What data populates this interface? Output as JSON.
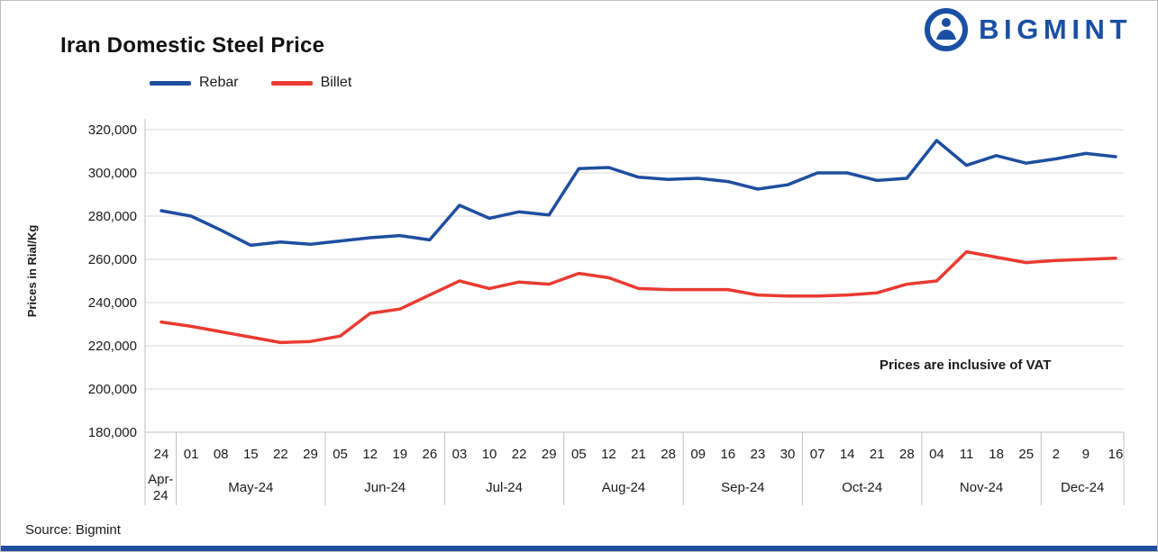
{
  "header": {
    "title": "Iran Domestic Steel Price",
    "brand": "BIGMINT"
  },
  "legend": {
    "items": [
      {
        "label": "Rebar"
      },
      {
        "label": "Billet"
      }
    ]
  },
  "annotation": "Prices are inclusive of VAT",
  "source": "Source: Bigmint",
  "colors": {
    "rebar_blue": "#1f4e9f",
    "billet_red": "#e93b33",
    "brand_blue": "#1b4fa3",
    "footer_bar": "#1f4e9f",
    "gridline": "#d9d9d9",
    "axis_line": "#bfbfbf"
  },
  "chart_data": {
    "type": "line",
    "title": "Iran Domestic Steel Price",
    "xlabel": "",
    "ylabel": "Prices in Rial/Kg",
    "ylim": [
      180000,
      320000
    ],
    "ytick_step": 20000,
    "ytick_labels": [
      "180,000",
      "200,000",
      "220,000",
      "240,000",
      "260,000",
      "280,000",
      "300,000",
      "320,000"
    ],
    "grid": true,
    "legend_position": "top-left",
    "note": "Prices are inclusive of VAT",
    "groups": [
      {
        "label": "Apr-24",
        "ticks": [
          "24"
        ]
      },
      {
        "label": "May-24",
        "ticks": [
          "01",
          "08",
          "15",
          "22",
          "29"
        ]
      },
      {
        "label": "Jun-24",
        "ticks": [
          "05",
          "12",
          "19",
          "26"
        ]
      },
      {
        "label": "Jul-24",
        "ticks": [
          "03",
          "10",
          "22",
          "29"
        ]
      },
      {
        "label": "Aug-24",
        "ticks": [
          "05",
          "12",
          "21",
          "28"
        ]
      },
      {
        "label": "Sep-24",
        "ticks": [
          "09",
          "16",
          "23",
          "30"
        ]
      },
      {
        "label": "Oct-24",
        "ticks": [
          "07",
          "14",
          "21",
          "28"
        ]
      },
      {
        "label": "Nov-24",
        "ticks": [
          "04",
          "11",
          "18",
          "25"
        ]
      },
      {
        "label": "Dec-24",
        "ticks": [
          "2",
          "9",
          "16"
        ]
      }
    ],
    "series": [
      {
        "name": "Rebar",
        "color": "#1f4e9f",
        "values": [
          282500,
          280000,
          273500,
          266500,
          268000,
          267000,
          268500,
          270000,
          271000,
          269000,
          285000,
          279000,
          282000,
          280500,
          302000,
          302500,
          298000,
          297000,
          297500,
          296000,
          292500,
          294500,
          300000,
          300000,
          296500,
          297500,
          315000,
          303500,
          308000,
          304500,
          306500,
          309000,
          307500
        ]
      },
      {
        "name": "Billet",
        "color": "#e93b33",
        "values": [
          231000,
          229000,
          226500,
          224000,
          221500,
          222000,
          224500,
          235000,
          237000,
          243500,
          250000,
          246500,
          249500,
          248500,
          253500,
          251500,
          246500,
          246000,
          246000,
          246000,
          243500,
          243000,
          243000,
          243500,
          244500,
          248500,
          250000,
          263500,
          261000,
          258500,
          259500,
          260000,
          260500
        ]
      }
    ]
  }
}
